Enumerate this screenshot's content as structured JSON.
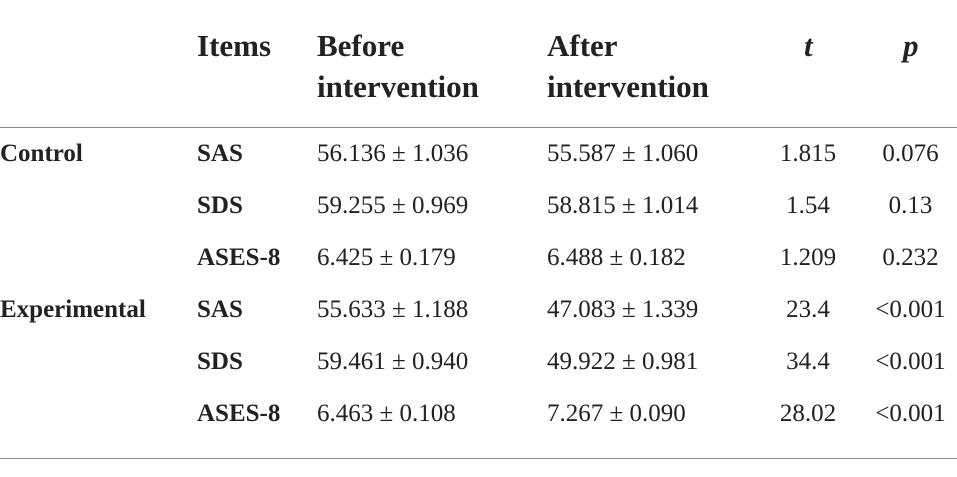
{
  "header": {
    "items": "Items",
    "before_line1": "Before",
    "before_line2": "intervention",
    "after_line1": "After",
    "after_line2": "intervention",
    "t": "t",
    "p": "p"
  },
  "groups": [
    {
      "name": "Control",
      "rows": [
        {
          "item": "SAS",
          "before": "56.136 ± 1.036",
          "after": "55.587 ± 1.060",
          "t": "1.815",
          "p": "0.076"
        },
        {
          "item": "SDS",
          "before": "59.255 ± 0.969",
          "after": "58.815 ± 1.014",
          "t": "1.54",
          "p": "0.13"
        },
        {
          "item": "ASES-8",
          "before": "6.425 ± 0.179",
          "after": "6.488 ± 0.182",
          "t": "1.209",
          "p": "0.232"
        }
      ]
    },
    {
      "name": "Experimental",
      "rows": [
        {
          "item": "SAS",
          "before": "55.633 ± 1.188",
          "after": "47.083 ± 1.339",
          "t": "23.4",
          "p": "<0.001"
        },
        {
          "item": "SDS",
          "before": "59.461 ± 0.940",
          "after": "49.922 ± 0.981",
          "t": "34.4",
          "p": "<0.001"
        },
        {
          "item": "ASES-8",
          "before": "6.463 ± 0.108",
          "after": "7.267 ± 0.090",
          "t": "28.02",
          "p": "<0.001"
        }
      ]
    }
  ]
}
